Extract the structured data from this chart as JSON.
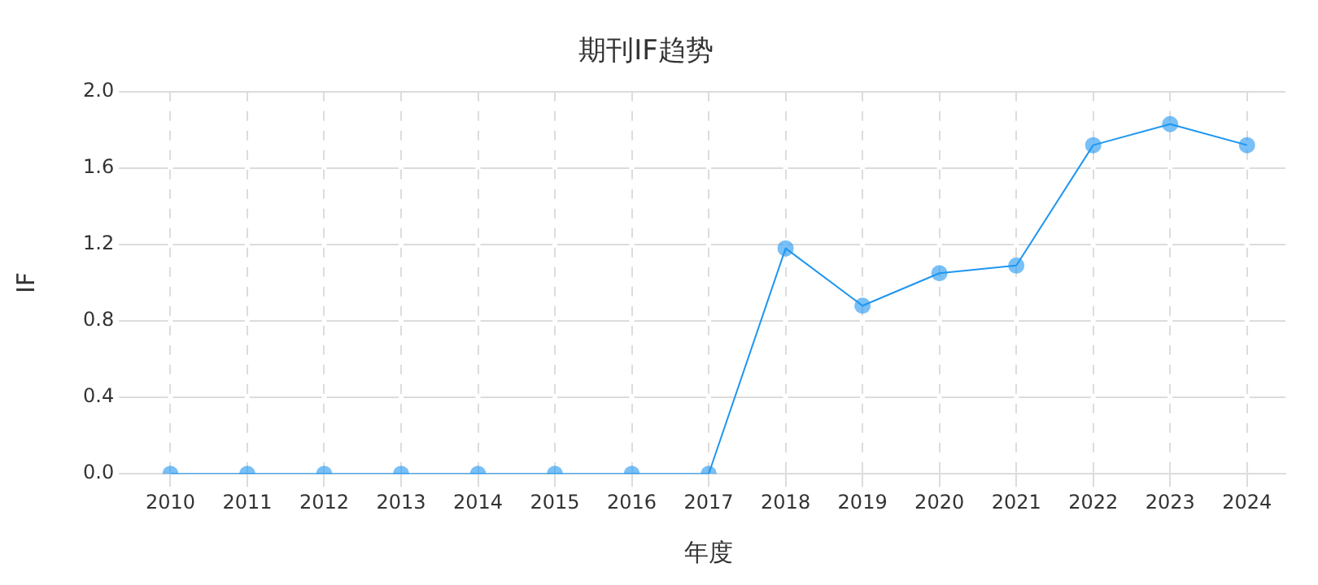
{
  "chart_data": {
    "type": "line",
    "title": "期刊IF趋势",
    "xlabel": "年度",
    "ylabel": "IF",
    "categories": [
      "2010",
      "2011",
      "2012",
      "2013",
      "2014",
      "2015",
      "2016",
      "2017",
      "2018",
      "2019",
      "2020",
      "2021",
      "2022",
      "2023",
      "2024"
    ],
    "series": [
      {
        "color": "#1e96f0",
        "values": [
          0,
          0,
          0,
          0,
          0,
          0,
          0,
          0,
          1.18,
          0.88,
          1.05,
          1.09,
          1.72,
          1.83,
          1.72
        ]
      }
    ],
    "ylim": [
      0,
      2
    ],
    "yticks": [
      {
        "value": 0,
        "label": "0.0"
      },
      {
        "value": 0.4,
        "label": "0.4"
      },
      {
        "value": 0.8,
        "label": "0.8"
      },
      {
        "value": 1.2,
        "label": "1.2"
      },
      {
        "value": 1.6,
        "label": "1.6"
      },
      {
        "value": 2,
        "label": "2.0"
      }
    ],
    "grid": true,
    "legend": false,
    "marker": "circle",
    "line_style": "solid"
  }
}
